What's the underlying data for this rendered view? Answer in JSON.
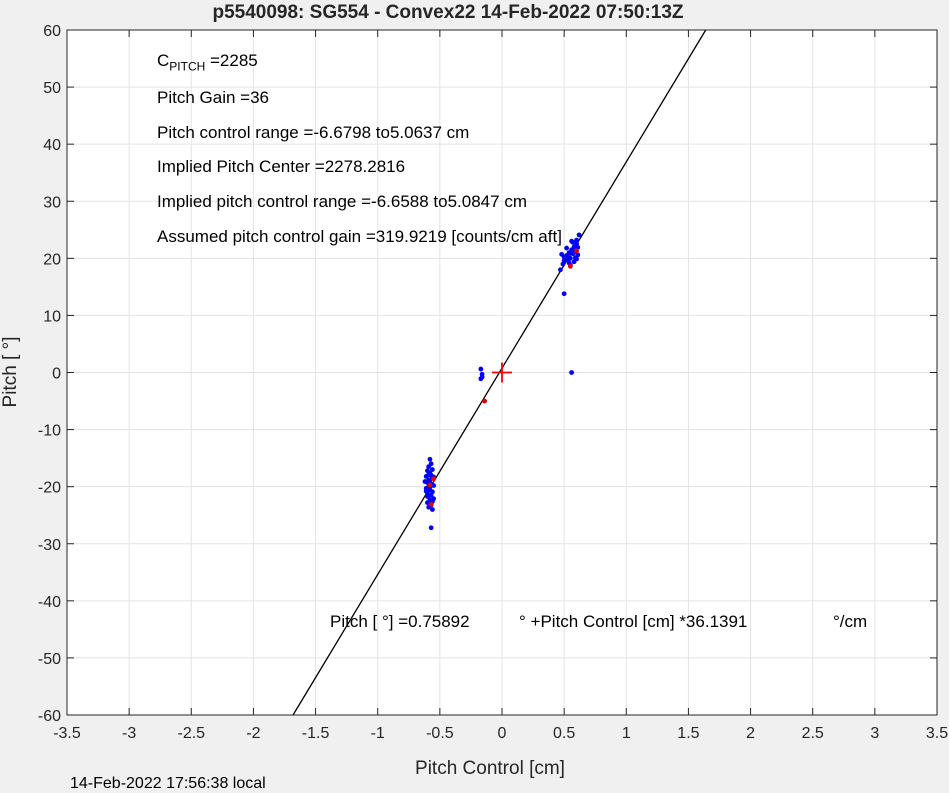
{
  "chart_data": {
    "type": "scatter",
    "title": "p5540098: SG554 - Convex22 14-Feb-2022 07:50:13Z",
    "xlabel": "Pitch Control [cm]",
    "ylabel": "Pitch [  °]",
    "xlim": [
      -3.5,
      3.5
    ],
    "ylim": [
      -60,
      60
    ],
    "xticks": [
      -3.5,
      -3,
      -2.5,
      -2,
      -1.5,
      -1,
      -0.5,
      0,
      0.5,
      1,
      1.5,
      2,
      2.5,
      3,
      3.5
    ],
    "yticks": [
      -60,
      -50,
      -40,
      -30,
      -20,
      -10,
      0,
      10,
      20,
      30,
      40,
      50,
      60
    ],
    "grid": true,
    "fit_line": {
      "intercept": 0.75892,
      "slope": 36.1391,
      "color": "#000000"
    },
    "center_marker": {
      "x": 0,
      "y": 0,
      "shape": "plus",
      "color": "#ff0000"
    },
    "series": [
      {
        "color": "#0000ff",
        "points": [
          [
            -0.58,
            -15.2
          ],
          [
            -0.57,
            -16.0
          ],
          [
            -0.59,
            -16.5
          ],
          [
            -0.56,
            -17.0
          ],
          [
            -0.6,
            -17.2
          ],
          [
            -0.58,
            -17.6
          ],
          [
            -0.57,
            -18.0
          ],
          [
            -0.61,
            -18.2
          ],
          [
            -0.56,
            -18.5
          ],
          [
            -0.59,
            -18.8
          ],
          [
            -0.58,
            -19.0
          ],
          [
            -0.6,
            -19.3
          ],
          [
            -0.57,
            -19.6
          ],
          [
            -0.55,
            -19.8
          ],
          [
            -0.59,
            -20.0
          ],
          [
            -0.61,
            -20.3
          ],
          [
            -0.58,
            -20.6
          ],
          [
            -0.56,
            -20.9
          ],
          [
            -0.6,
            -21.2
          ],
          [
            -0.57,
            -21.5
          ],
          [
            -0.59,
            -21.8
          ],
          [
            -0.55,
            -22.1
          ],
          [
            -0.58,
            -22.4
          ],
          [
            -0.6,
            -22.8
          ],
          [
            -0.57,
            -23.2
          ],
          [
            -0.59,
            -23.6
          ],
          [
            -0.56,
            -24.0
          ],
          [
            -0.58,
            -20.1
          ],
          [
            -0.62,
            -19.1
          ],
          [
            -0.55,
            -18.3
          ],
          [
            -0.57,
            -27.2
          ],
          [
            -0.59,
            -17.9
          ],
          [
            -0.6,
            -21.7
          ],
          [
            -0.56,
            -22.6
          ],
          [
            -0.61,
            -20.8
          ],
          [
            -0.17,
            0.6
          ],
          [
            -0.16,
            -0.3
          ],
          [
            -0.17,
            -1.1
          ],
          [
            -0.16,
            -0.8
          ],
          [
            0.5,
            13.8
          ],
          [
            0.56,
            0.0
          ],
          [
            0.47,
            18.0
          ],
          [
            0.49,
            19.0
          ],
          [
            0.5,
            19.6
          ],
          [
            0.5,
            20.2
          ],
          [
            0.52,
            20.5
          ],
          [
            0.53,
            19.8
          ],
          [
            0.54,
            21.0
          ],
          [
            0.55,
            20.0
          ],
          [
            0.56,
            21.5
          ],
          [
            0.57,
            20.8
          ],
          [
            0.58,
            22.0
          ],
          [
            0.58,
            19.4
          ],
          [
            0.59,
            21.2
          ],
          [
            0.6,
            22.5
          ],
          [
            0.6,
            23.2
          ],
          [
            0.61,
            20.6
          ],
          [
            0.62,
            24.1
          ],
          [
            0.57,
            22.8
          ],
          [
            0.55,
            18.8
          ],
          [
            0.52,
            21.8
          ],
          [
            0.59,
            20.1
          ],
          [
            0.61,
            21.9
          ],
          [
            0.56,
            23.0
          ],
          [
            0.54,
            19.2
          ],
          [
            0.6,
            19.9
          ],
          [
            0.48,
            20.7
          ]
        ]
      },
      {
        "color": "#e00000",
        "points": [
          [
            -0.55,
            -18.6
          ],
          [
            -0.57,
            -23.1
          ],
          [
            -0.58,
            -19.7
          ],
          [
            -0.14,
            -5.0
          ],
          [
            0.55,
            18.6
          ],
          [
            0.6,
            21.3
          ]
        ]
      }
    ],
    "annotations": {
      "cpitch_main": "C",
      "cpitch_sub": "PITCH",
      "cpitch_val": " =2285",
      "pitch_gain": "Pitch Gain =36",
      "control_range": "Pitch control range =-6.6798 to5.0637 cm",
      "implied_center": "Implied Pitch Center =2278.2816",
      "implied_range": "Implied pitch control range =-6.6588 to5.0847 cm",
      "assumed_gain": "Assumed pitch control gain =319.9219 [counts/cm aft]",
      "fit_part1": "Pitch [  °] =0.75892",
      "fit_part2": "° +Pitch Control [cm] *36.1391",
      "fit_part3": "°/cm"
    }
  },
  "footer": "14-Feb-2022 17:56:38 local"
}
